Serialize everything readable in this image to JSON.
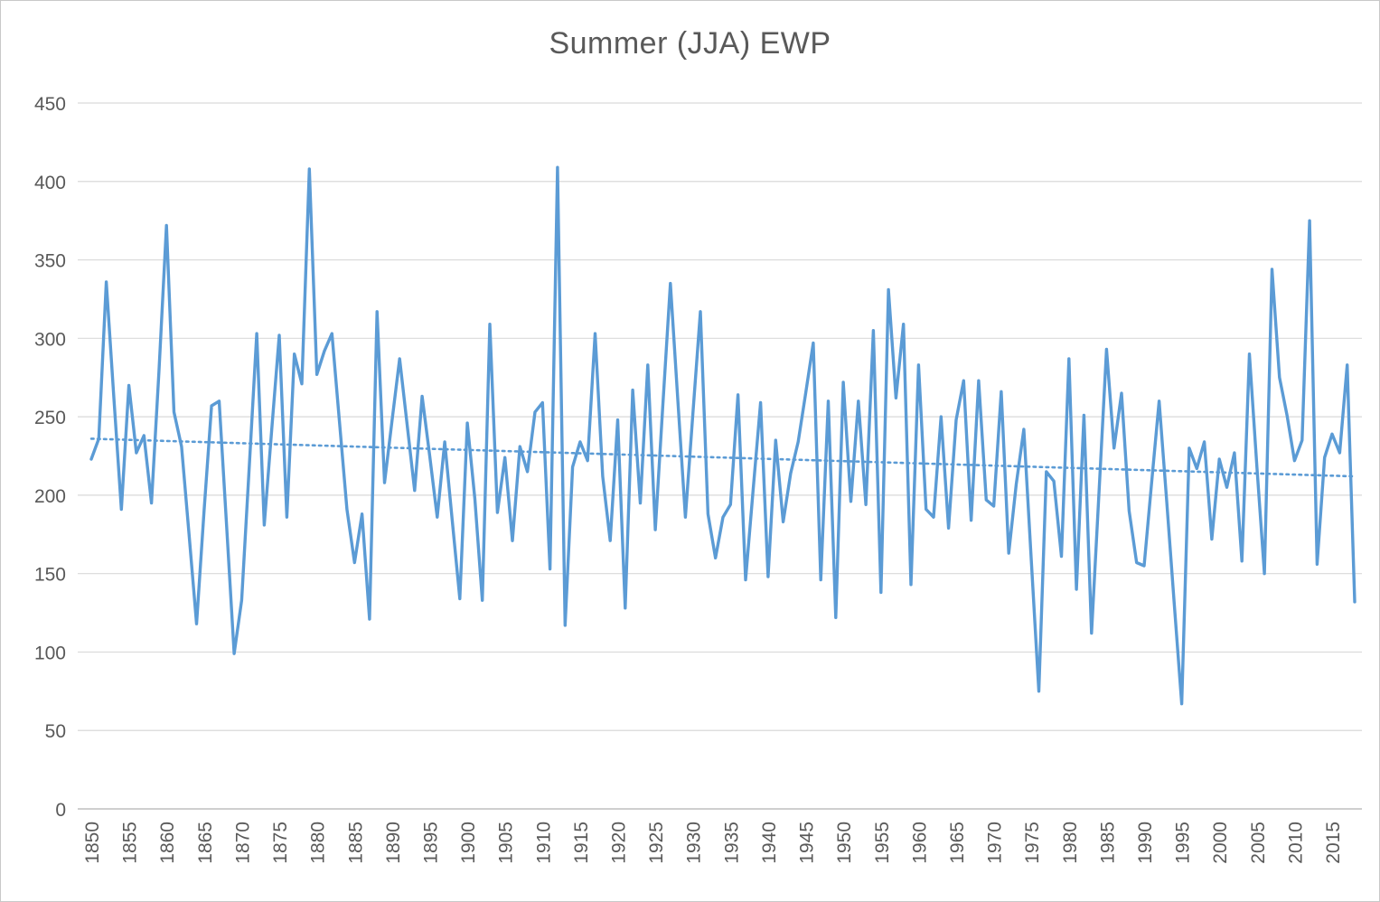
{
  "window": {
    "background": "#ffffff",
    "border_color": "#c9c9c9"
  },
  "chart_data": {
    "type": "line",
    "title": "Summer (JJA) EWP",
    "xlabel": "",
    "ylabel": "",
    "legend": "none",
    "grid": "horizontal",
    "x_start": 1850,
    "x_end": 2018,
    "x_tick_step": 5,
    "x_tick_labels": [
      "1850",
      "1855",
      "1860",
      "1865",
      "1870",
      "1875",
      "1880",
      "1885",
      "1890",
      "1895",
      "1900",
      "1905",
      "1910",
      "1915",
      "1920",
      "1925",
      "1930",
      "1935",
      "1940",
      "1945",
      "1950",
      "1955",
      "1960",
      "1965",
      "1970",
      "1975",
      "1980",
      "1985",
      "1990",
      "1995",
      "2000",
      "2005",
      "2010",
      "2015"
    ],
    "ylim": [
      0,
      450
    ],
    "y_tick_step": 50,
    "y_tick_labels": [
      "0",
      "50",
      "100",
      "150",
      "200",
      "250",
      "300",
      "350",
      "400",
      "450"
    ],
    "series": [
      {
        "name": "Summer (JJA) EWP",
        "color": "#5B9BD5",
        "values": [
          223,
          236,
          336,
          262,
          191,
          270,
          227,
          238,
          195,
          279,
          372,
          253,
          231,
          175,
          118,
          190,
          257,
          260,
          180,
          99,
          133,
          218,
          303,
          181,
          242,
          302,
          186,
          290,
          271,
          408,
          277,
          292,
          303,
          247,
          191,
          157,
          188,
          121,
          317,
          208,
          248,
          287,
          245,
          203,
          263,
          225,
          186,
          234,
          184,
          134,
          246,
          198,
          133,
          309,
          189,
          224,
          171,
          231,
          215,
          253,
          259,
          153,
          409,
          117,
          218,
          234,
          222,
          303,
          212,
          171,
          248,
          128,
          267,
          195,
          283,
          178,
          257,
          335,
          260,
          186,
          252,
          317,
          188,
          160,
          186,
          194,
          264,
          146,
          203,
          259,
          148,
          235,
          183,
          214,
          234,
          265,
          297,
          146,
          260,
          122,
          272,
          196,
          260,
          194,
          305,
          138,
          331,
          262,
          309,
          143,
          283,
          191,
          186,
          250,
          179,
          248,
          273,
          184,
          273,
          197,
          193,
          266,
          163,
          207,
          242,
          158,
          75,
          215,
          209,
          161,
          287,
          140,
          251,
          112,
          202,
          293,
          230,
          265,
          190,
          157,
          155,
          208,
          260,
          196,
          131,
          67,
          230,
          217,
          234,
          172,
          223,
          205,
          227,
          158,
          290,
          218,
          150,
          344,
          275,
          251,
          222,
          235,
          375,
          156,
          224,
          239,
          227,
          283,
          132
        ]
      }
    ],
    "trendline": {
      "style": "dotted",
      "color": "#5B9BD5",
      "start_value": 236,
      "end_value": 212
    }
  },
  "styles": {
    "gridline_color": "#D9D9D9",
    "axis_line_color": "#BFBFBF",
    "tick_label_color": "#595959",
    "title_color": "#595959"
  }
}
